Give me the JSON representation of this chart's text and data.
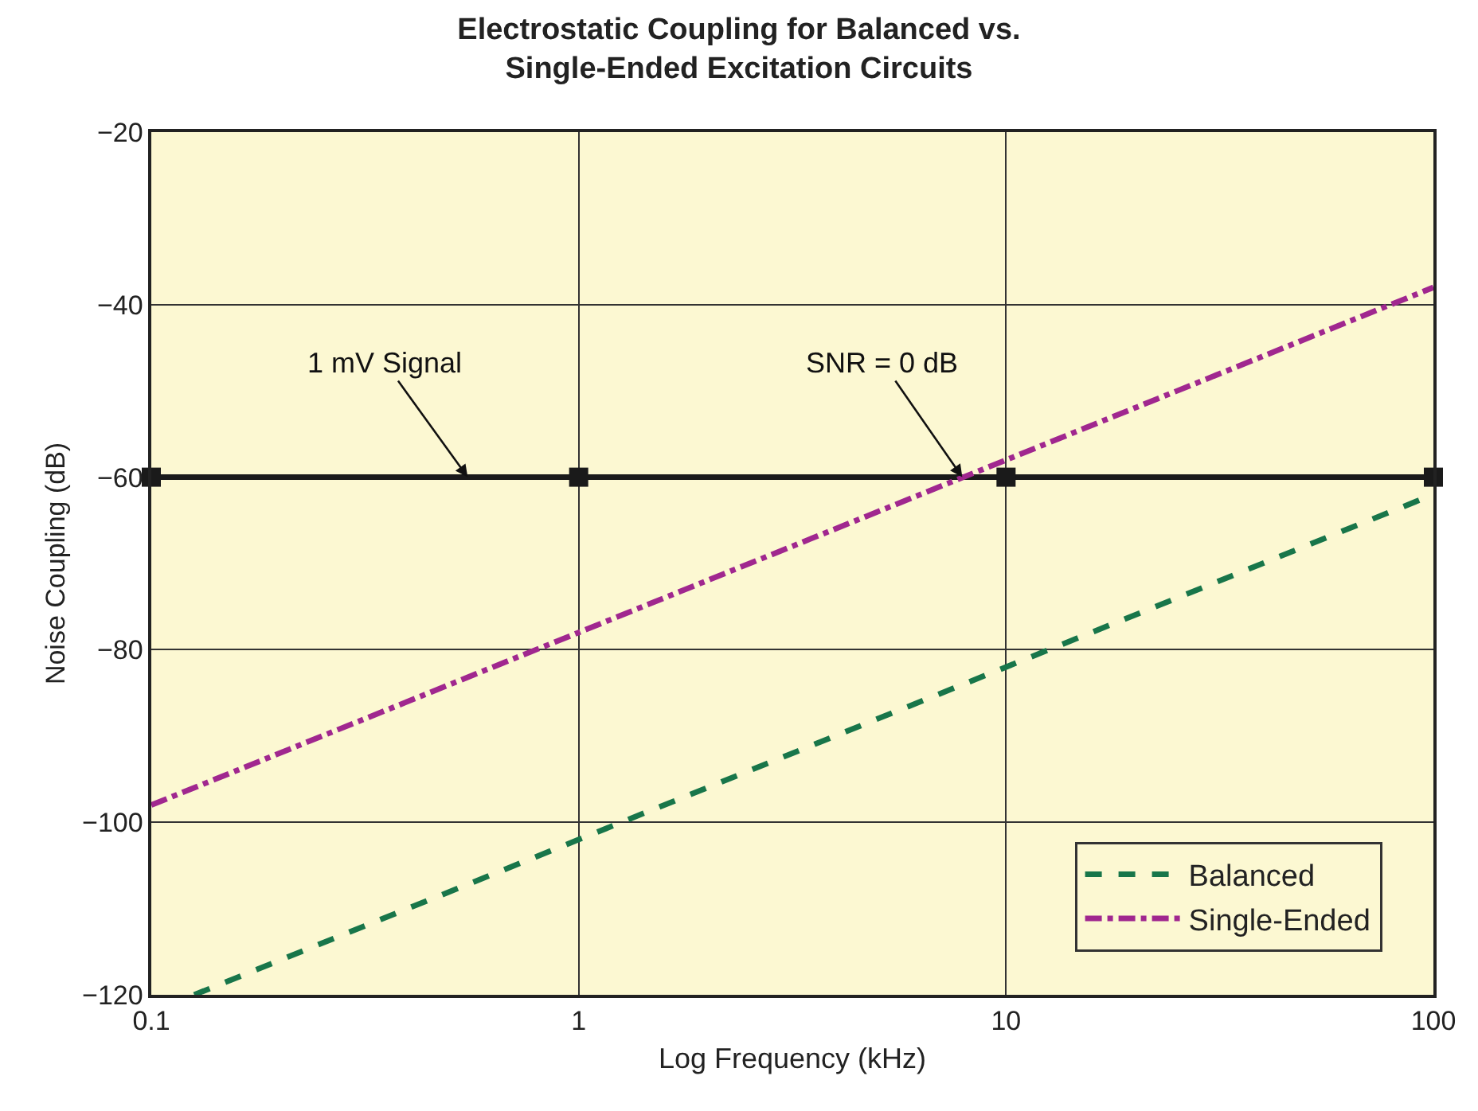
{
  "chart_data": {
    "type": "line",
    "title": "Electrostatic Coupling for Balanced vs.\nSingle-Ended Excitation Circuits",
    "xlabel": "Log Frequency (kHz)",
    "ylabel": "Noise Coupling (dB)",
    "log": "x",
    "xlim": [
      0.1,
      100
    ],
    "xticks": [
      0.1,
      1,
      10,
      100
    ],
    "ylim": [
      -120,
      -20
    ],
    "yticks": [
      -120,
      -100,
      -80,
      -60,
      -40,
      -20
    ],
    "grid": true,
    "legend": "bottom right",
    "series": [
      {
        "color": "#1a1a1a",
        "x": [
          0.1,
          1,
          10,
          100
        ],
        "values": [
          -60,
          -60,
          -60,
          -60
        ],
        "marker": "square",
        "line_style": "solid"
      },
      {
        "name": "Balanced",
        "color": "#18764a",
        "x": [
          0.126,
          100
        ],
        "values": [
          -120,
          -62
        ],
        "marker": "none",
        "line_style": "dashed"
      },
      {
        "name": "Single-Ended",
        "color": "#a0278f",
        "x": [
          0.1,
          100
        ],
        "values": [
          -98,
          -38
        ],
        "marker": "none",
        "line_style": "dashdot"
      }
    ],
    "annotations": [
      {
        "text": "1 mV Signal",
        "x": 0.55,
        "y": -60
      },
      {
        "text": "SNR = 0 dB",
        "x": 7.9,
        "y": -60
      }
    ]
  }
}
